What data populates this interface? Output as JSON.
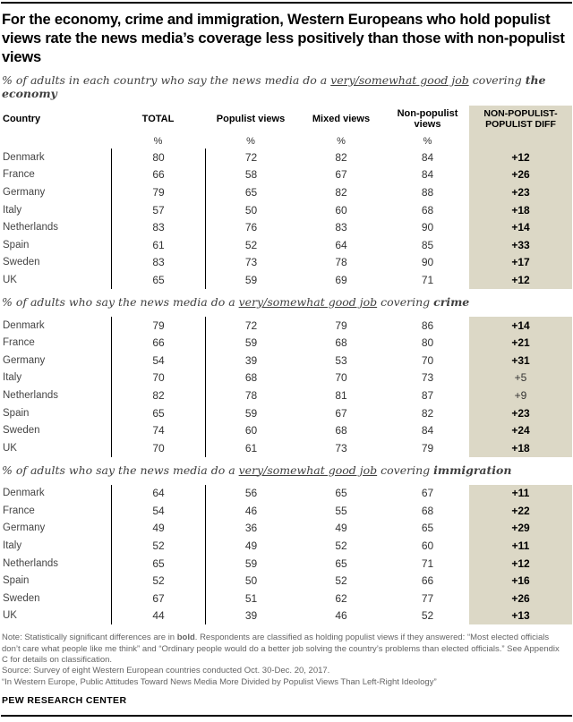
{
  "title": "For the economy, crime and immigration, Western Europeans who hold populist views rate the news media’s coverage less positively than those with non-populist views",
  "columns": {
    "country": "Country",
    "total": "TOTAL",
    "populist": "Populist views",
    "mixed": "Mixed views",
    "nonpopulist": "Non-populist views",
    "diff": "NON-POPULIST-POPULIST DIFF",
    "percent": "%"
  },
  "tables": [
    {
      "subtitle": {
        "prefix": "% of adults in each country who say the news media do a ",
        "underlined": "very/somewhat good job",
        "mid": " covering ",
        "topic": "the economy"
      },
      "rows": [
        {
          "country": "Denmark",
          "total": "80",
          "populist": "72",
          "mixed": "82",
          "nonpopulist": "84",
          "diff": "+12",
          "sig": true
        },
        {
          "country": "France",
          "total": "66",
          "populist": "58",
          "mixed": "67",
          "nonpopulist": "84",
          "diff": "+26",
          "sig": true
        },
        {
          "country": "Germany",
          "total": "79",
          "populist": "65",
          "mixed": "82",
          "nonpopulist": "88",
          "diff": "+23",
          "sig": true
        },
        {
          "country": "Italy",
          "total": "57",
          "populist": "50",
          "mixed": "60",
          "nonpopulist": "68",
          "diff": "+18",
          "sig": true
        },
        {
          "country": "Netherlands",
          "total": "83",
          "populist": "76",
          "mixed": "83",
          "nonpopulist": "90",
          "diff": "+14",
          "sig": true
        },
        {
          "country": "Spain",
          "total": "61",
          "populist": "52",
          "mixed": "64",
          "nonpopulist": "85",
          "diff": "+33",
          "sig": true
        },
        {
          "country": "Sweden",
          "total": "83",
          "populist": "73",
          "mixed": "78",
          "nonpopulist": "90",
          "diff": "+17",
          "sig": true
        },
        {
          "country": "UK",
          "total": "65",
          "populist": "59",
          "mixed": "69",
          "nonpopulist": "71",
          "diff": "+12",
          "sig": true
        }
      ]
    },
    {
      "subtitle": {
        "prefix": "% of adults who say the news media do a ",
        "underlined": "very/somewhat good job",
        "mid": " covering ",
        "topic": "crime"
      },
      "rows": [
        {
          "country": "Denmark",
          "total": "79",
          "populist": "72",
          "mixed": "79",
          "nonpopulist": "86",
          "diff": "+14",
          "sig": true
        },
        {
          "country": "France",
          "total": "66",
          "populist": "59",
          "mixed": "68",
          "nonpopulist": "80",
          "diff": "+21",
          "sig": true
        },
        {
          "country": "Germany",
          "total": "54",
          "populist": "39",
          "mixed": "53",
          "nonpopulist": "70",
          "diff": "+31",
          "sig": true
        },
        {
          "country": "Italy",
          "total": "70",
          "populist": "68",
          "mixed": "70",
          "nonpopulist": "73",
          "diff": "+5",
          "sig": false
        },
        {
          "country": "Netherlands",
          "total": "82",
          "populist": "78",
          "mixed": "81",
          "nonpopulist": "87",
          "diff": "+9",
          "sig": false
        },
        {
          "country": "Spain",
          "total": "65",
          "populist": "59",
          "mixed": "67",
          "nonpopulist": "82",
          "diff": "+23",
          "sig": true
        },
        {
          "country": "Sweden",
          "total": "74",
          "populist": "60",
          "mixed": "68",
          "nonpopulist": "84",
          "diff": "+24",
          "sig": true
        },
        {
          "country": "UK",
          "total": "70",
          "populist": "61",
          "mixed": "73",
          "nonpopulist": "79",
          "diff": "+18",
          "sig": true
        }
      ]
    },
    {
      "subtitle": {
        "prefix": "% of adults who say the news media do a ",
        "underlined": "very/somewhat good job",
        "mid": " covering ",
        "topic": "immigration"
      },
      "rows": [
        {
          "country": "Denmark",
          "total": "64",
          "populist": "56",
          "mixed": "65",
          "nonpopulist": "67",
          "diff": "+11",
          "sig": true
        },
        {
          "country": "France",
          "total": "54",
          "populist": "46",
          "mixed": "55",
          "nonpopulist": "68",
          "diff": "+22",
          "sig": true
        },
        {
          "country": "Germany",
          "total": "49",
          "populist": "36",
          "mixed": "49",
          "nonpopulist": "65",
          "diff": "+29",
          "sig": true
        },
        {
          "country": "Italy",
          "total": "52",
          "populist": "49",
          "mixed": "52",
          "nonpopulist": "60",
          "diff": "+11",
          "sig": true
        },
        {
          "country": "Netherlands",
          "total": "65",
          "populist": "59",
          "mixed": "65",
          "nonpopulist": "71",
          "diff": "+12",
          "sig": true
        },
        {
          "country": "Spain",
          "total": "52",
          "populist": "50",
          "mixed": "52",
          "nonpopulist": "66",
          "diff": "+16",
          "sig": true
        },
        {
          "country": "Sweden",
          "total": "67",
          "populist": "51",
          "mixed": "62",
          "nonpopulist": "77",
          "diff": "+26",
          "sig": true
        },
        {
          "country": "UK",
          "total": "44",
          "populist": "39",
          "mixed": "46",
          "nonpopulist": "52",
          "diff": "+13",
          "sig": true
        }
      ]
    }
  ],
  "notes": {
    "note_prefix": "Note: Statistically significant differences are in ",
    "note_bold": "bold",
    "note_rest": ". Respondents are classified as holding populist views if they answered: “Most elected officials don’t care what people like me think” and “Ordinary people would do a better job solving the country’s problems than elected officials.” See Appendix C for details on classification.",
    "source": "Source: Survey of eight Western European countries conducted Oct. 30-Dec. 20, 2017.",
    "report": "“In Western Europe, Public Attitudes Toward News Media More Divided by Populist Views Than Left-Right Ideology”"
  },
  "brand": "PEW RESEARCH CENTER",
  "accent_color": "#dcd8c6",
  "chart_data": [
    {
      "type": "table",
      "title": "% of adults in each country who say the news media do a very/somewhat good job covering the economy",
      "columns": [
        "Country",
        "TOTAL %",
        "Populist views %",
        "Mixed views %",
        "Non-populist views %",
        "Non-populist-Populist diff"
      ],
      "rows": [
        [
          "Denmark",
          80,
          72,
          82,
          84,
          12
        ],
        [
          "France",
          66,
          58,
          67,
          84,
          26
        ],
        [
          "Germany",
          79,
          65,
          82,
          88,
          23
        ],
        [
          "Italy",
          57,
          50,
          60,
          68,
          18
        ],
        [
          "Netherlands",
          83,
          76,
          83,
          90,
          14
        ],
        [
          "Spain",
          61,
          52,
          64,
          85,
          33
        ],
        [
          "Sweden",
          83,
          73,
          78,
          90,
          17
        ],
        [
          "UK",
          65,
          59,
          69,
          71,
          12
        ]
      ]
    },
    {
      "type": "table",
      "title": "% of adults who say the news media do a very/somewhat good job covering crime",
      "columns": [
        "Country",
        "TOTAL %",
        "Populist views %",
        "Mixed views %",
        "Non-populist views %",
        "Non-populist-Populist diff"
      ],
      "rows": [
        [
          "Denmark",
          79,
          72,
          79,
          86,
          14
        ],
        [
          "France",
          66,
          59,
          68,
          80,
          21
        ],
        [
          "Germany",
          54,
          39,
          53,
          70,
          31
        ],
        [
          "Italy",
          70,
          68,
          70,
          73,
          5
        ],
        [
          "Netherlands",
          82,
          78,
          81,
          87,
          9
        ],
        [
          "Spain",
          65,
          59,
          67,
          82,
          23
        ],
        [
          "Sweden",
          74,
          60,
          68,
          84,
          24
        ],
        [
          "UK",
          70,
          61,
          73,
          79,
          18
        ]
      ],
      "not_significant_rows": [
        "Italy",
        "Netherlands"
      ]
    },
    {
      "type": "table",
      "title": "% of adults who say the news media do a very/somewhat good job covering immigration",
      "columns": [
        "Country",
        "TOTAL %",
        "Populist views %",
        "Mixed views %",
        "Non-populist views %",
        "Non-populist-Populist diff"
      ],
      "rows": [
        [
          "Denmark",
          64,
          56,
          65,
          67,
          11
        ],
        [
          "France",
          54,
          46,
          55,
          68,
          22
        ],
        [
          "Germany",
          49,
          36,
          49,
          65,
          29
        ],
        [
          "Italy",
          52,
          49,
          52,
          60,
          11
        ],
        [
          "Netherlands",
          65,
          59,
          65,
          71,
          12
        ],
        [
          "Spain",
          52,
          50,
          52,
          66,
          16
        ],
        [
          "Sweden",
          67,
          51,
          62,
          77,
          26
        ],
        [
          "UK",
          44,
          39,
          46,
          52,
          13
        ]
      ]
    }
  ]
}
